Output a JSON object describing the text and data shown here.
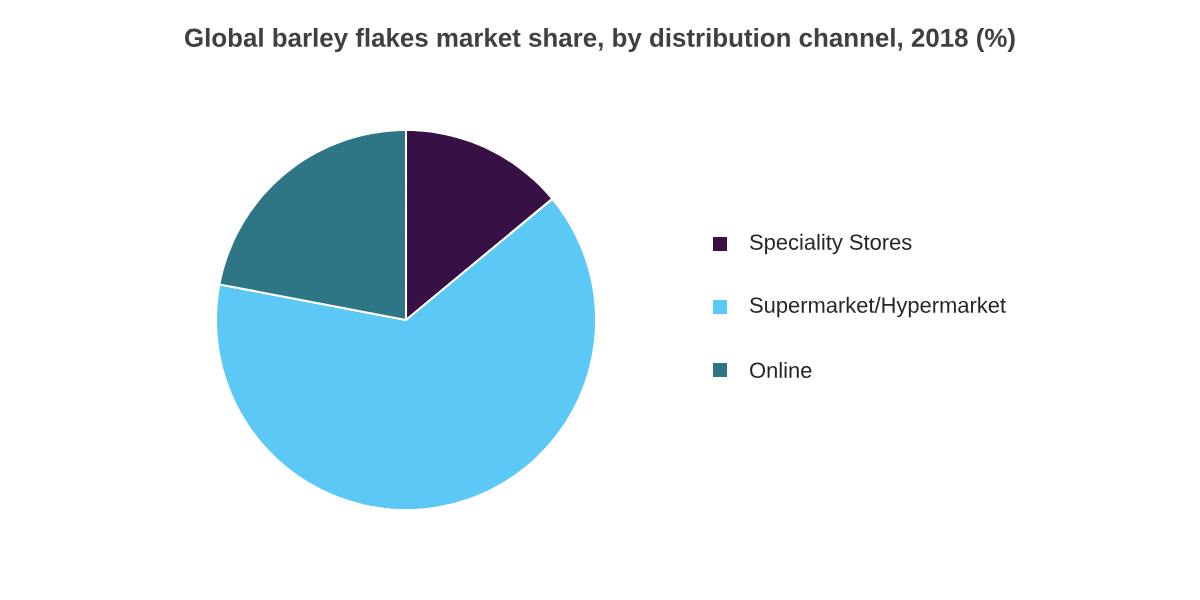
{
  "chart_data": {
    "type": "pie",
    "title": "Global barley flakes market share, by distribution channel, 2018 (%)",
    "categories": [
      "Speciality Stores",
      "Supermarket/Hypermarket",
      "Online"
    ],
    "values": [
      14,
      64,
      22
    ],
    "colors": [
      "#371146",
      "#5bc8f5",
      "#2e7585"
    ],
    "legend": "right"
  }
}
